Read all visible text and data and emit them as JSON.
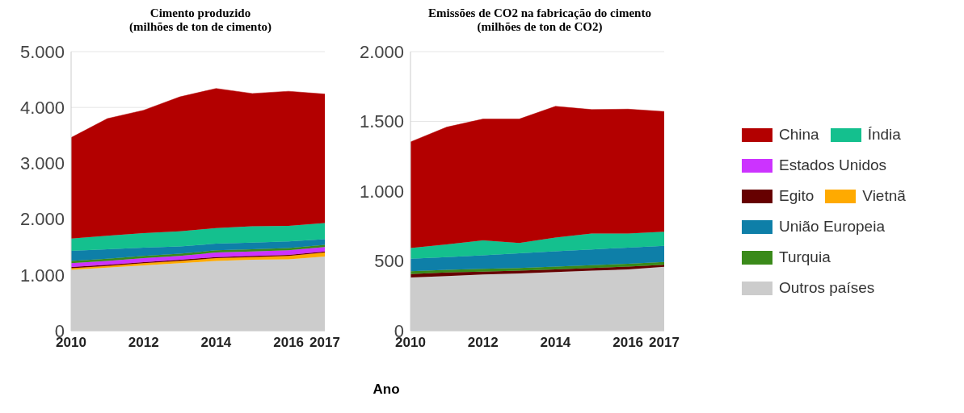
{
  "chart_data": [
    {
      "type": "area",
      "title": "Cimento produzido\n(milhões de ton de cimento)",
      "xlabel": "Ano",
      "stacked": true,
      "grid": "y",
      "legend": "right",
      "x": [
        2010,
        2011,
        2012,
        2013,
        2014,
        2015,
        2016,
        2017
      ],
      "xlim": [
        2010,
        2017
      ],
      "xticks": [
        2010,
        2012,
        2014,
        2016,
        2017
      ],
      "ylim": [
        0,
        5000
      ],
      "yticks": [
        {
          "value": 0,
          "label": "0"
        },
        {
          "value": 1000,
          "label": "1.000"
        },
        {
          "value": 2000,
          "label": "2.000"
        },
        {
          "value": 3000,
          "label": "3.000"
        },
        {
          "value": 4000,
          "label": "4.000"
        },
        {
          "value": 5000,
          "label": "5.000"
        }
      ],
      "series": [
        {
          "name": "Outros países",
          "color": "#cccccc",
          "values": [
            1090,
            1130,
            1170,
            1210,
            1250,
            1270,
            1280,
            1330
          ]
        },
        {
          "name": "Vietnã",
          "color": "#ffaa00",
          "values": [
            30,
            30,
            40,
            40,
            50,
            50,
            60,
            70
          ]
        },
        {
          "name": "Egito",
          "color": "#660000",
          "values": [
            20,
            20,
            20,
            20,
            20,
            20,
            20,
            20
          ]
        },
        {
          "name": "Estados Unidos",
          "color": "#cc33ff",
          "values": [
            70,
            70,
            70,
            70,
            80,
            80,
            80,
            80
          ]
        },
        {
          "name": "Turquia",
          "color": "#3a8a1a",
          "values": [
            40,
            40,
            40,
            40,
            40,
            40,
            40,
            40
          ]
        },
        {
          "name": "União Europeia",
          "color": "#0e7fa8",
          "values": [
            180,
            170,
            150,
            130,
            120,
            120,
            120,
            100
          ]
        },
        {
          "name": "Índia",
          "color": "#14c08e",
          "values": [
            220,
            240,
            260,
            270,
            280,
            290,
            280,
            290
          ]
        },
        {
          "name": "China",
          "color": "#b30000",
          "values": [
            1810,
            2100,
            2200,
            2410,
            2500,
            2380,
            2410,
            2310
          ]
        }
      ]
    },
    {
      "type": "area",
      "title": "Emissões de CO2 na fabricação do cimento\n(milhões de ton de CO2)",
      "stacked": true,
      "grid": "y",
      "x": [
        2010,
        2011,
        2012,
        2013,
        2014,
        2015,
        2016,
        2017
      ],
      "xlim": [
        2010,
        2017
      ],
      "xticks": [
        2010,
        2012,
        2014,
        2016,
        2017
      ],
      "ylim": [
        0,
        2000
      ],
      "yticks": [
        {
          "value": 0,
          "label": "0"
        },
        {
          "value": 500,
          "label": "500"
        },
        {
          "value": 1000,
          "label": "1.000"
        },
        {
          "value": 1500,
          "label": "1.500"
        },
        {
          "value": 2000,
          "label": "2.000"
        }
      ],
      "series": [
        {
          "color": "#cccccc",
          "values": [
            381,
            392,
            403,
            410,
            420,
            430,
            440,
            458
          ]
        },
        {
          "color": "#660000",
          "values": [
            25,
            25,
            20,
            20,
            20,
            20,
            20,
            15
          ]
        },
        {
          "color": "#3a8a1a",
          "values": [
            20,
            20,
            20,
            20,
            20,
            20,
            20,
            20
          ]
        },
        {
          "color": "#0e7fa8",
          "values": [
            90,
            91,
            98,
            105,
            110,
            113,
            116,
            116
          ]
        },
        {
          "color": "#14c08e",
          "values": [
            77,
            90,
            106,
            73,
            97,
            113,
            100,
            100
          ]
        },
        {
          "color": "#b30000",
          "values": [
            760,
            841,
            870,
            889,
            941,
            889,
            892,
            862
          ]
        }
      ]
    }
  ]
}
